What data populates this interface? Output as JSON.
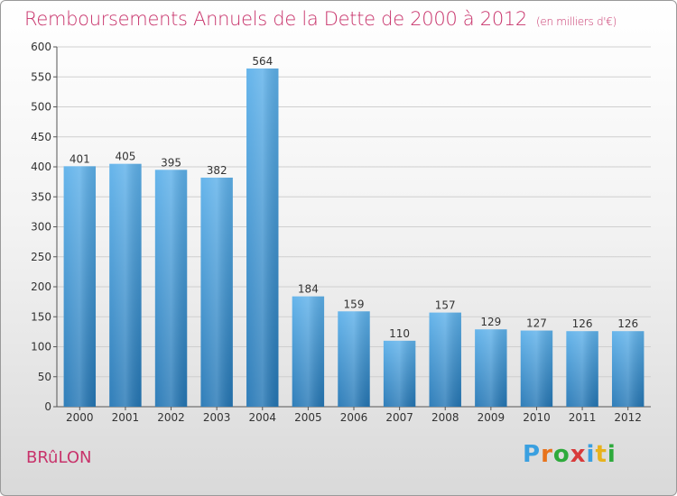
{
  "header": {
    "title": "Remboursements Annuels de la Dette de 2000 à 2012",
    "subtitle": "(en milliers d'€)"
  },
  "footer": {
    "commune": "BRûLON",
    "brand": "Proxiti"
  },
  "colors": {
    "title": "#c8336b",
    "bar_top": "#5eb1ea",
    "bar_bottom": "#2577b5",
    "grid": "#cfcfcf"
  },
  "chart_data": {
    "type": "bar",
    "title": "Remboursements Annuels de la Dette de 2000 à 2012",
    "subtitle": "(en milliers d'€)",
    "xlabel": "",
    "ylabel": "",
    "categories": [
      "2000",
      "2001",
      "2002",
      "2003",
      "2004",
      "2005",
      "2006",
      "2007",
      "2008",
      "2009",
      "2010",
      "2011",
      "2012"
    ],
    "values": [
      401,
      405,
      395,
      382,
      564,
      184,
      159,
      110,
      157,
      129,
      127,
      126,
      126
    ],
    "ylim": [
      0,
      600
    ],
    "yticks": [
      0,
      50,
      100,
      150,
      200,
      250,
      300,
      350,
      400,
      450,
      500,
      550,
      600
    ],
    "grid": true,
    "legend": "none"
  }
}
